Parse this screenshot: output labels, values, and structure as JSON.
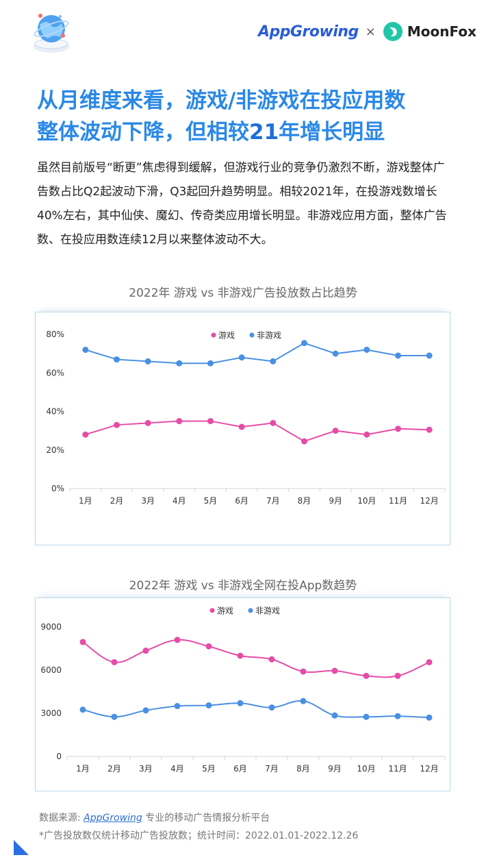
{
  "header": {
    "brand_left": "AppGrowing",
    "separator": "×",
    "brand_right": "MoonFox"
  },
  "headline": {
    "line1": "从月维度来看，游戏/非游戏在投应用数",
    "line2_pre": "整体波动下降，但相较",
    "line2_em": "21",
    "line2_post": "年增长明显"
  },
  "intro": "虽然目前版号“断更”焦虑得到缓解，但游戏行业的竞争仍激烈不断，游戏整体广告数占比Q2起波动下滑，Q3起回升趋势明显。相较2021年，在投游戏数增长40%左右，其中仙侠、魔幻、传奇类应用增长明显。非游戏应用方面，整体广告数、在投应用数连续12月以来整体波动不大。",
  "colors": {
    "game": "#e64ca6",
    "nongame": "#4a90e2",
    "headline": "#2a88e6"
  },
  "chart_data": [
    {
      "type": "line",
      "title": "2022年 游戏 vs 非游戏广告投放数占比趋势",
      "categories": [
        "1月",
        "2月",
        "3月",
        "4月",
        "5月",
        "6月",
        "7月",
        "8月",
        "9月",
        "10月",
        "11月",
        "12月"
      ],
      "series": [
        {
          "name": "游戏",
          "values": [
            28,
            33,
            34,
            35,
            35,
            32,
            34,
            24.5,
            30,
            28,
            31,
            30.5
          ]
        },
        {
          "name": "非游戏",
          "values": [
            72,
            67,
            66,
            65,
            65,
            68,
            66,
            75.5,
            70,
            72,
            69,
            69
          ]
        }
      ],
      "yticks": [
        "0%",
        "20%",
        "40%",
        "60%",
        "80%"
      ],
      "ylim": [
        0,
        80
      ],
      "legend": "top-center",
      "smooth": false
    },
    {
      "type": "line",
      "title": "2022年 游戏 vs 非游戏全网在投App数趋势",
      "categories": [
        "1月",
        "2月",
        "3月",
        "4月",
        "5月",
        "6月",
        "7月",
        "8月",
        "9月",
        "10月",
        "11月",
        "12月"
      ],
      "series": [
        {
          "name": "游戏",
          "values": [
            7950,
            6550,
            7350,
            8100,
            7650,
            7000,
            6750,
            5900,
            5950,
            5600,
            5600,
            6550
          ]
        },
        {
          "name": "非游戏",
          "values": [
            3250,
            2750,
            3200,
            3500,
            3550,
            3700,
            3400,
            3850,
            2850,
            2750,
            2800,
            2700
          ]
        }
      ],
      "yticks": [
        "0",
        "3000",
        "6000",
        "9000"
      ],
      "ylim": [
        0,
        9000
      ],
      "legend": "top-center",
      "smooth": true
    }
  ],
  "footer": {
    "source_label": "数据来源: ",
    "source_brand": "AppGrowing",
    "source_desc": " 专业的移动广告情报分析平台",
    "note": "*广告投放数仅统计移动广告投放数；统计时间：2022.01.01-2022.12.26"
  }
}
